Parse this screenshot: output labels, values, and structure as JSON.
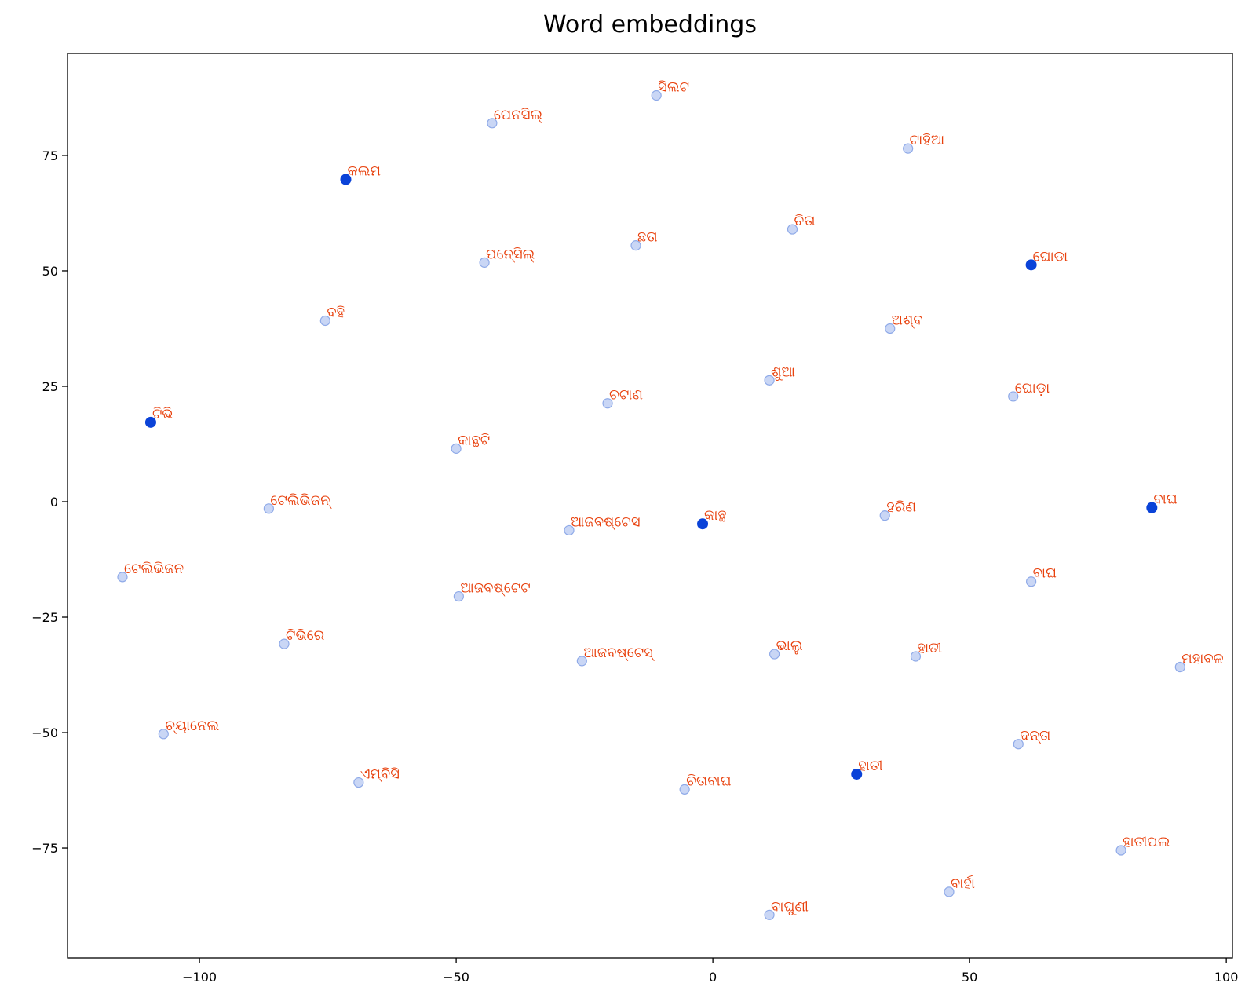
{
  "chart_data": {
    "type": "scatter",
    "title": "Word embeddings",
    "xlabel": "",
    "ylabel": "",
    "xlim": [
      -125.7,
      101.2
    ],
    "ylim": [
      -98.8,
      97.1
    ],
    "xticks": [
      -100,
      -50,
      0,
      50,
      100
    ],
    "yticks": [
      -75,
      -50,
      -25,
      0,
      25,
      50,
      75
    ],
    "xtick_labels": [
      "−100",
      "−50",
      "0",
      "50",
      "100"
    ],
    "ytick_labels": [
      "−75",
      "−50",
      "−25",
      "0",
      "25",
      "50",
      "75"
    ],
    "grid": false,
    "colors": {
      "highlight": "#0b43d8",
      "neighbor": "#c9d6f5",
      "neighbor_edge": "#8faae8",
      "label": "#e8400c"
    },
    "points": [
      {
        "x": -11.0,
        "y": 88.0,
        "label": "ସିଲଟ",
        "group": "neighbor"
      },
      {
        "x": -43.0,
        "y": 82.0,
        "label": "ପେନସିଲ୍",
        "group": "neighbor"
      },
      {
        "x": 38.0,
        "y": 76.5,
        "label": "ଟାହିଆ",
        "group": "neighbor"
      },
      {
        "x": -71.5,
        "y": 69.8,
        "label": "କଲମ",
        "group": "highlight"
      },
      {
        "x": 15.5,
        "y": 59.0,
        "label": "ଚିତା",
        "group": "neighbor"
      },
      {
        "x": -15.0,
        "y": 55.5,
        "label": "ଛତା",
        "group": "neighbor"
      },
      {
        "x": -44.5,
        "y": 51.8,
        "label": "ପନେ୍ସିଲ୍",
        "group": "neighbor"
      },
      {
        "x": 62.0,
        "y": 51.3,
        "label": "ଘୋଡା",
        "group": "highlight"
      },
      {
        "x": -75.5,
        "y": 39.2,
        "label": "ବହି",
        "group": "neighbor"
      },
      {
        "x": 34.5,
        "y": 37.5,
        "label": "ଅଶ୍ବ",
        "group": "neighbor"
      },
      {
        "x": 11.0,
        "y": 26.3,
        "label": "ଶୁଆ",
        "group": "neighbor"
      },
      {
        "x": 58.5,
        "y": 22.8,
        "label": "ଘୋଡ଼ା",
        "group": "neighbor"
      },
      {
        "x": -20.5,
        "y": 21.3,
        "label": "ଚଟାଣ",
        "group": "neighbor"
      },
      {
        "x": -109.5,
        "y": 17.2,
        "label": "ଟିଭି",
        "group": "highlight"
      },
      {
        "x": -50.0,
        "y": 11.5,
        "label": "କାନ୍ଥଟି",
        "group": "neighbor"
      },
      {
        "x": -86.5,
        "y": -1.5,
        "label": "ଟେଲିଭିଜନ୍",
        "group": "neighbor"
      },
      {
        "x": 85.5,
        "y": -1.3,
        "label": "ବାଘ",
        "group": "highlight"
      },
      {
        "x": 33.5,
        "y": -3.0,
        "label": "ହରିଣ",
        "group": "neighbor"
      },
      {
        "x": -2.0,
        "y": -4.8,
        "label": "କାନ୍ଥ",
        "group": "highlight"
      },
      {
        "x": -28.0,
        "y": -6.2,
        "label": "ଆଜବଷ୍ଟେସ",
        "group": "neighbor"
      },
      {
        "x": -115.0,
        "y": -16.3,
        "label": "ଟେଲିଭିଜନ",
        "group": "neighbor"
      },
      {
        "x": 62.0,
        "y": -17.3,
        "label": "ବାଘ",
        "group": "neighbor"
      },
      {
        "x": -49.5,
        "y": -20.5,
        "label": "ଆଜବଷ୍ଟେଟ",
        "group": "neighbor"
      },
      {
        "x": -83.5,
        "y": -30.8,
        "label": "ଟିଭିରେ",
        "group": "neighbor"
      },
      {
        "x": 12.0,
        "y": -33.0,
        "label": "ଭାଲୁ",
        "group": "neighbor"
      },
      {
        "x": 39.5,
        "y": -33.5,
        "label": "ହାତୀ",
        "group": "neighbor"
      },
      {
        "x": -25.5,
        "y": -34.5,
        "label": "ଆଜବଷ୍ଟେସ୍",
        "group": "neighbor"
      },
      {
        "x": 91.0,
        "y": -35.8,
        "label": "ମହାବଳ",
        "group": "neighbor"
      },
      {
        "x": -107.0,
        "y": -50.3,
        "label": "ଚ୍ୟାନେଲ",
        "group": "neighbor"
      },
      {
        "x": 59.5,
        "y": -52.5,
        "label": "ଦନ୍ତା",
        "group": "neighbor"
      },
      {
        "x": 28.0,
        "y": -59.0,
        "label": "ହାତୀ",
        "group": "highlight"
      },
      {
        "x": -69.0,
        "y": -60.8,
        "label": "ଏମ୍ବିସି",
        "group": "neighbor"
      },
      {
        "x": -5.5,
        "y": -62.3,
        "label": "ଚିତାବାଘ",
        "group": "neighbor"
      },
      {
        "x": 79.5,
        "y": -75.5,
        "label": "ହାତୀପଲ",
        "group": "neighbor"
      },
      {
        "x": 46.0,
        "y": -84.5,
        "label": "ବାର୍ହା",
        "group": "neighbor"
      },
      {
        "x": 11.0,
        "y": -89.5,
        "label": "ବାଘୁଣୀ",
        "group": "neighbor"
      }
    ]
  }
}
